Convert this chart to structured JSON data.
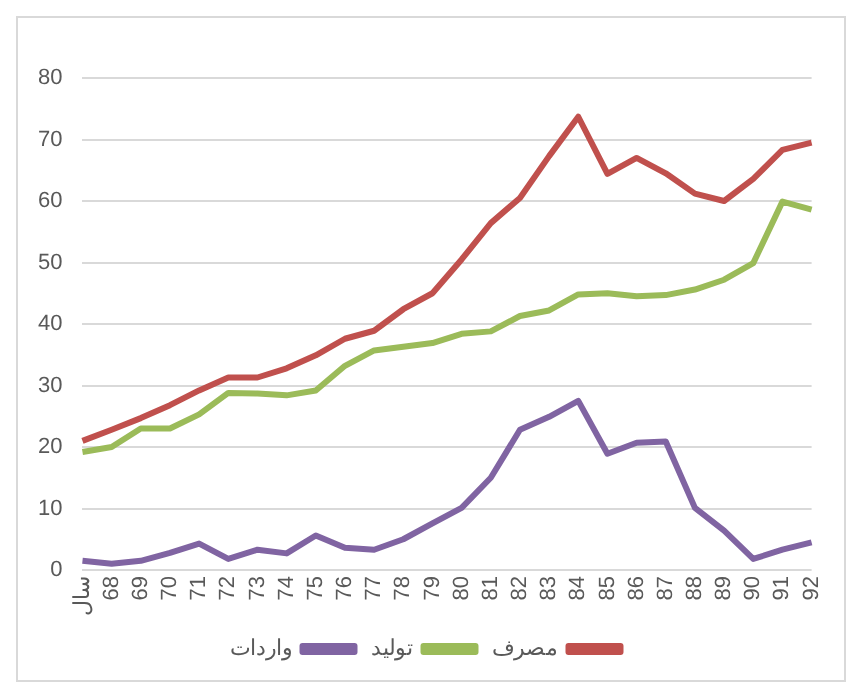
{
  "chart_data": {
    "type": "line",
    "categories": [
      "سال",
      "68",
      "69",
      "70",
      "71",
      "72",
      "73",
      "74",
      "75",
      "76",
      "77",
      "78",
      "79",
      "80",
      "81",
      "82",
      "83",
      "84",
      "85",
      "86",
      "87",
      "88",
      "89",
      "90",
      "91",
      "92"
    ],
    "series": [
      {
        "name": "مصرف",
        "color": "#c0504d",
        "values": [
          21,
          22.8,
          24.7,
          26.8,
          29.2,
          31.3,
          31.3,
          32.8,
          34.9,
          37.6,
          38.9,
          42.4,
          45,
          50.5,
          56.4,
          60.5,
          67.3,
          73.7,
          64.4,
          67,
          64.5,
          61.2,
          60,
          63.6,
          68.3,
          69.5
        ]
      },
      {
        "name": "تولید",
        "color": "#9bbb59",
        "values": [
          19.2,
          20,
          23,
          23,
          25.3,
          28.8,
          28.7,
          28.4,
          29.2,
          33.2,
          35.7,
          36.3,
          36.9,
          38.4,
          38.8,
          41.3,
          42.2,
          44.8,
          45,
          44.5,
          44.7,
          45.6,
          47.2,
          49.9,
          59.9,
          58.6
        ]
      },
      {
        "name": "واردات",
        "color": "#8064a2",
        "values": [
          1.5,
          1,
          1.5,
          2.8,
          4.3,
          1.8,
          3.3,
          2.7,
          5.6,
          3.6,
          3.3,
          5,
          7.6,
          10.1,
          15,
          22.8,
          24.9,
          27.5,
          18.9,
          20.7,
          20.9,
          10.1,
          6.4,
          1.8,
          3.3,
          4.5
        ]
      }
    ],
    "ylim": [
      0,
      80
    ],
    "yticks": [
      0,
      10,
      20,
      30,
      40,
      50,
      60,
      70,
      80
    ],
    "grid": "y",
    "legend": "bottom",
    "marker": "none",
    "line_style": "solid"
  }
}
